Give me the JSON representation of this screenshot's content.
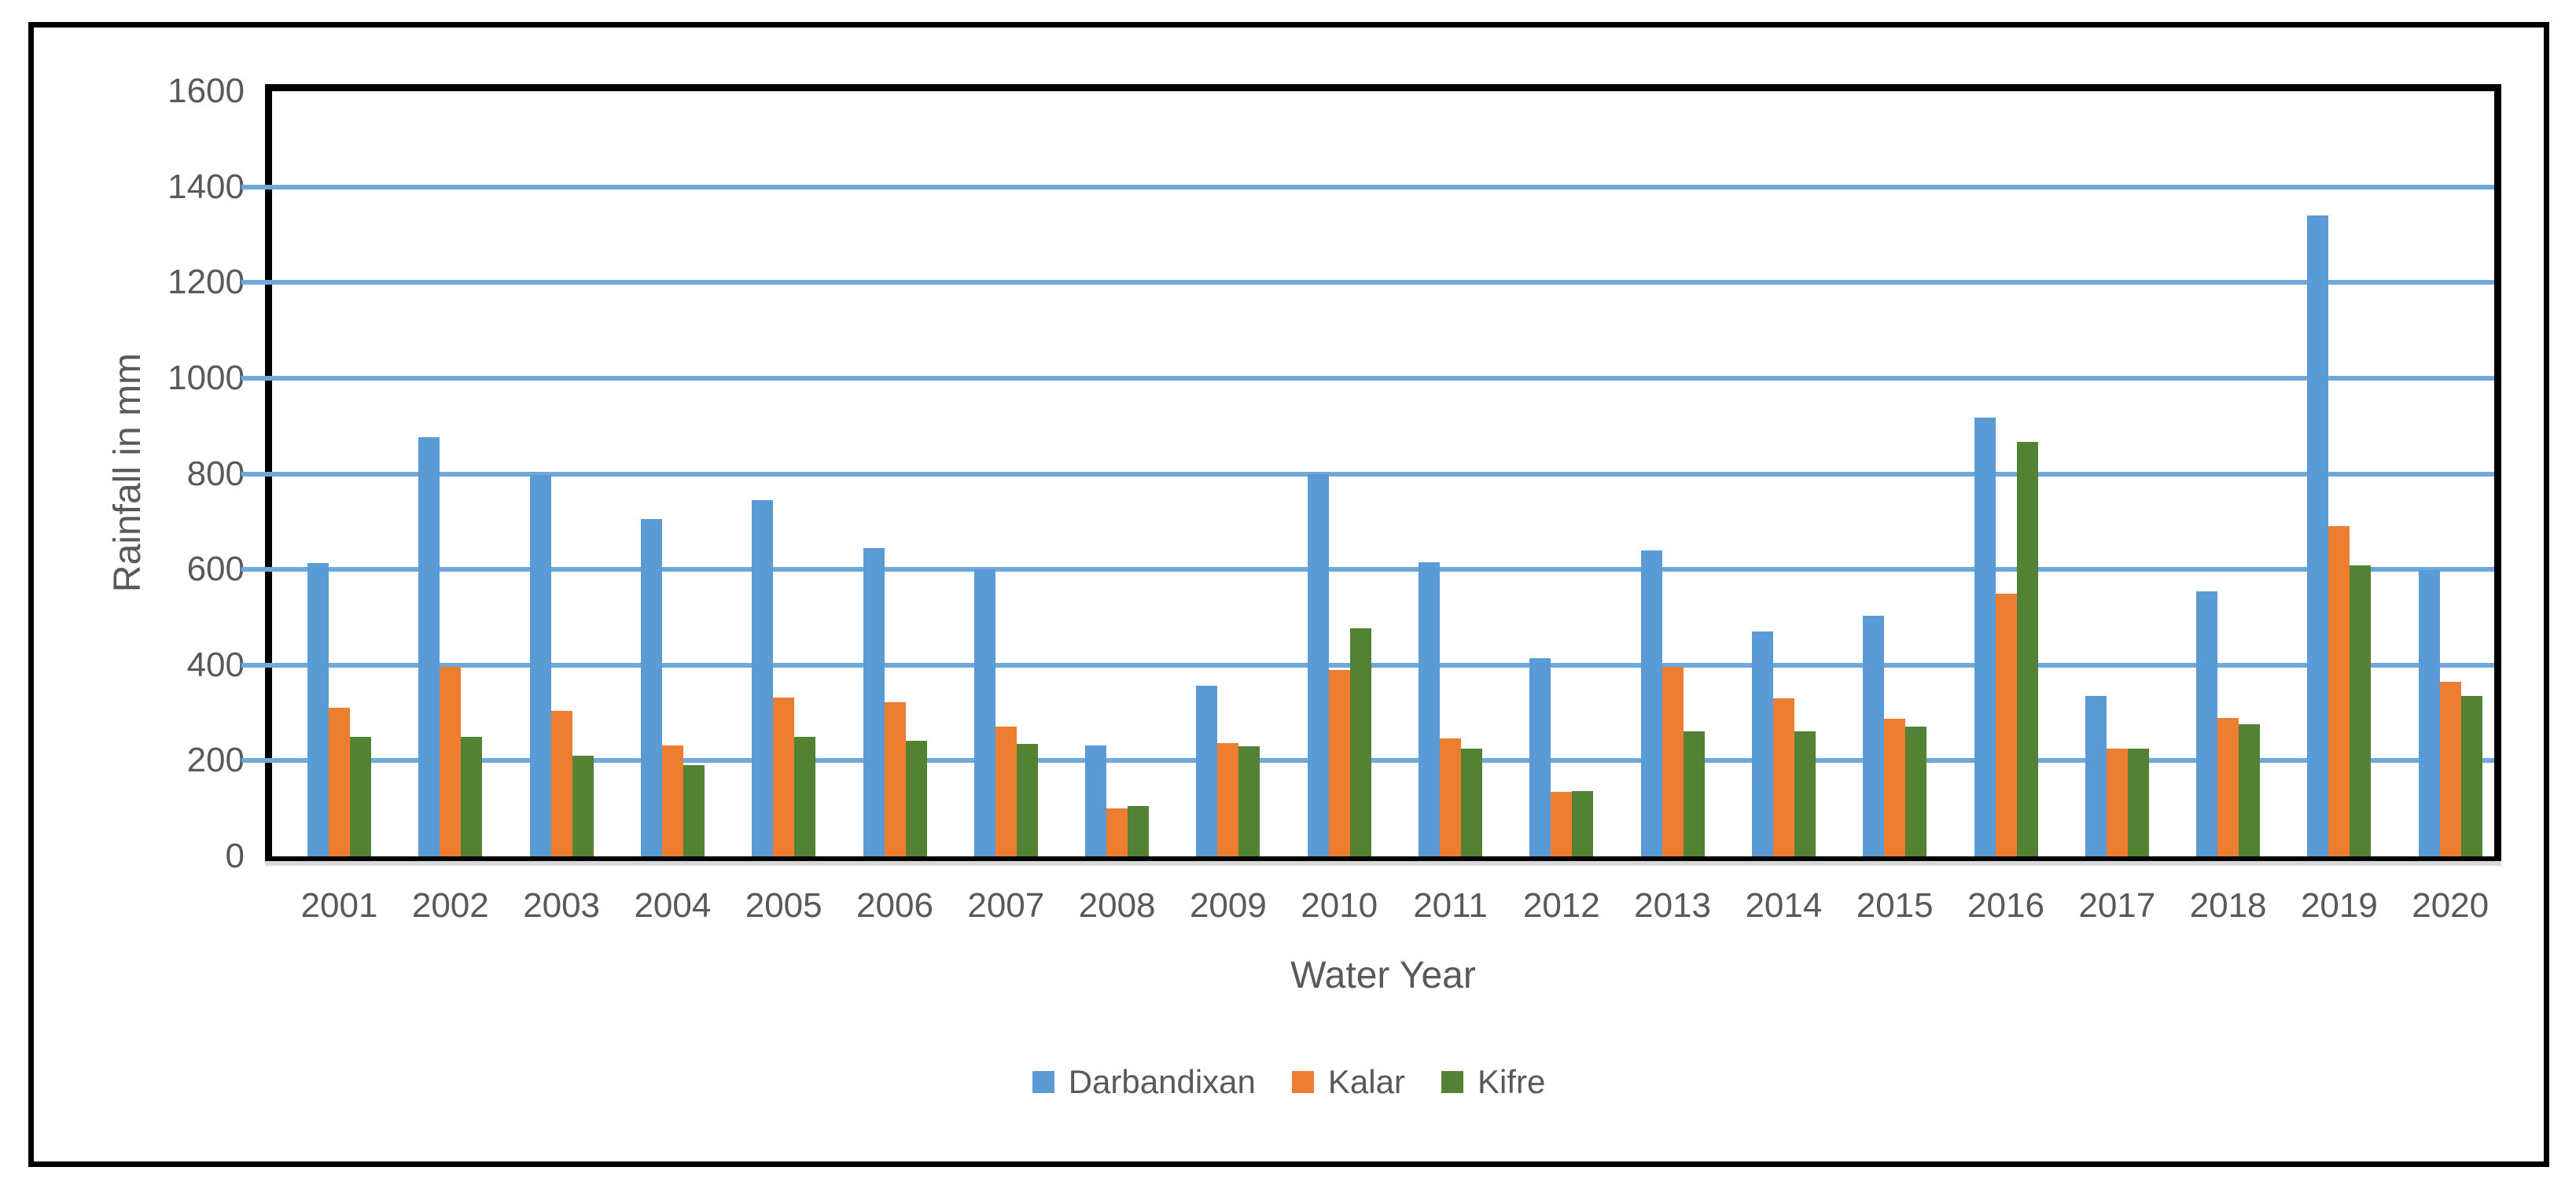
{
  "figure": {
    "background": "#FFFFFF",
    "border_color": "#000000"
  },
  "chart_data": {
    "type": "bar",
    "title": "",
    "xlabel": "Water Year",
    "ylabel": "Rainfall in mm",
    "ylim": [
      0,
      1600
    ],
    "ytick_step": 200,
    "yticks": [
      0,
      200,
      400,
      600,
      800,
      1000,
      1200,
      1400,
      1600
    ],
    "grid": "horizontal",
    "legend_position": "bottom",
    "categories": [
      "2001",
      "2002",
      "2003",
      "2004",
      "2005",
      "2006",
      "2007",
      "2008",
      "2009",
      "2010",
      "2011",
      "2012",
      "2013",
      "2014",
      "2015",
      "2016",
      "2017",
      "2018",
      "2019",
      "2020"
    ],
    "series": [
      {
        "name": "Darbandixan",
        "color": "#5B9BD5",
        "values": [
          613,
          877,
          797,
          705,
          745,
          645,
          600,
          232,
          357,
          800,
          615,
          415,
          640,
          470,
          503,
          917,
          335,
          555,
          1340,
          598
        ]
      },
      {
        "name": "Kalar",
        "color": "#ED7D31",
        "values": [
          310,
          397,
          305,
          232,
          332,
          322,
          272,
          100,
          237,
          390,
          247,
          135,
          396,
          330,
          288,
          550,
          225,
          290,
          690,
          365
        ]
      },
      {
        "name": "Kifre",
        "color": "#548235",
        "values": [
          250,
          250,
          210,
          190,
          250,
          242,
          235,
          105,
          230,
          477,
          225,
          137,
          262,
          262,
          272,
          867,
          225,
          277,
          608,
          335
        ]
      }
    ],
    "colors": {
      "gridline": "#6FA8DC",
      "axis": "#000000",
      "axis_shadow": "#D9D9D9",
      "text": "#595959"
    }
  }
}
